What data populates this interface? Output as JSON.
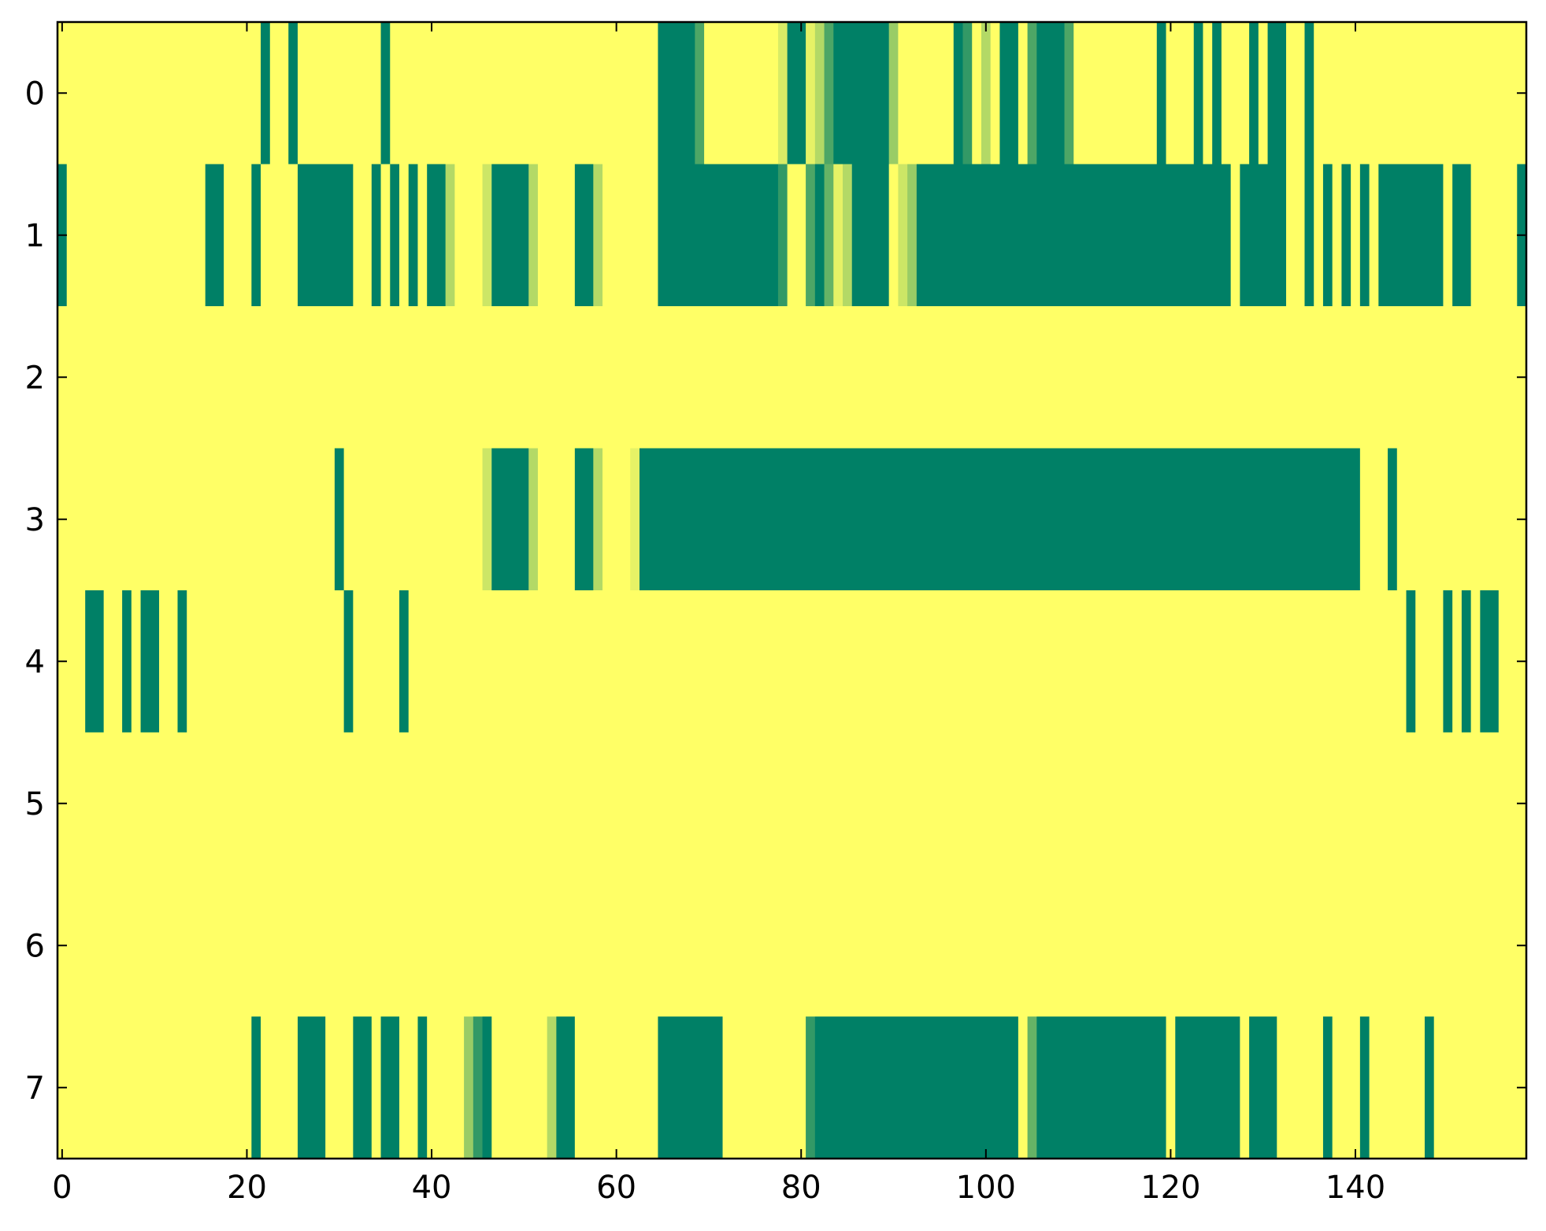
{
  "chart_data": {
    "type": "heatmap",
    "colormap": "summer",
    "xlim": [
      -0.5,
      158.5
    ],
    "ylim": [
      7.5,
      -0.5
    ],
    "xticks": [
      0,
      20,
      40,
      60,
      80,
      100,
      120,
      140
    ],
    "yticks": [
      0,
      1,
      2,
      3,
      4,
      5,
      6,
      7
    ],
    "values": [
      [
        1,
        1,
        1,
        1,
        1,
        1,
        1,
        1,
        1,
        1,
        1,
        1,
        1,
        1,
        1,
        1,
        1,
        1,
        1,
        1,
        1,
        1,
        0,
        1,
        1,
        0,
        1,
        1,
        1,
        1,
        1,
        1,
        1,
        1,
        1,
        0,
        1,
        1,
        1,
        1,
        1,
        1,
        1,
        1,
        1,
        1,
        1,
        1,
        1,
        1,
        1,
        1,
        1,
        1,
        1,
        1,
        1,
        1,
        1,
        1,
        1,
        1,
        1,
        1,
        1,
        0,
        0,
        0,
        0,
        0.3,
        1,
        1,
        1,
        1,
        1,
        1,
        1,
        1,
        0.85,
        0,
        0,
        0.9,
        0.7,
        0.3,
        0,
        0,
        0,
        0,
        0,
        0,
        0.6,
        1,
        1,
        1,
        1,
        1,
        1,
        0,
        0.2,
        1,
        0.7,
        1,
        0,
        0,
        1,
        0.3,
        0,
        0,
        0,
        0.3,
        1,
        1,
        1,
        1,
        1,
        1,
        1,
        1,
        1,
        0,
        1,
        1,
        1,
        0,
        1,
        0,
        1,
        1,
        1,
        0,
        1,
        0,
        0,
        1,
        1,
        0,
        1,
        1,
        1,
        1,
        1,
        1,
        1,
        1,
        1,
        1,
        1,
        1,
        1,
        1,
        1,
        1,
        1,
        1,
        1,
        1,
        1,
        1,
        1
      ],
      [
        0,
        1,
        1,
        1,
        1,
        1,
        1,
        1,
        1,
        1,
        1,
        1,
        1,
        1,
        1,
        1,
        0,
        0,
        1,
        1,
        1,
        0,
        1,
        1,
        1,
        1,
        0,
        0,
        0,
        0,
        0,
        0,
        1,
        1,
        0,
        1,
        0,
        1,
        0,
        1,
        0,
        0,
        0.7,
        1,
        1,
        1,
        0.8,
        0,
        0,
        0,
        0,
        0.7,
        1,
        1,
        1,
        1,
        0,
        0,
        0.7,
        1,
        1,
        1,
        1,
        1,
        1,
        0,
        0,
        0,
        0,
        0,
        0,
        0,
        0,
        0,
        0,
        0,
        0,
        0,
        0.2,
        1,
        1,
        0.3,
        0,
        0.4,
        0.9,
        0.7,
        0,
        0,
        0,
        0,
        1,
        0.8,
        0.6,
        0,
        0,
        0,
        0,
        0,
        0,
        0,
        0,
        0,
        0,
        0,
        0,
        0,
        0,
        0,
        0,
        0,
        0,
        0,
        0,
        0,
        0,
        0,
        0,
        0,
        0,
        0,
        0,
        0,
        0,
        0,
        0,
        0,
        0,
        1,
        0,
        0,
        0,
        0,
        0,
        1,
        1,
        0,
        1,
        0,
        1,
        0,
        1,
        0,
        1,
        0,
        0,
        0,
        0,
        0,
        0,
        0,
        1,
        0,
        0,
        1,
        1,
        1,
        1,
        1,
        0
      ],
      [
        1,
        1,
        1,
        1,
        1,
        1,
        1,
        1,
        1,
        1,
        1,
        1,
        1,
        1,
        1,
        1,
        1,
        1,
        1,
        1,
        1,
        1,
        1,
        1,
        1,
        1,
        1,
        1,
        1,
        1,
        1,
        1,
        1,
        1,
        1,
        1,
        1,
        1,
        1,
        1,
        1,
        1,
        1,
        1,
        1,
        1,
        1,
        1,
        1,
        1,
        1,
        1,
        1,
        1,
        1,
        1,
        1,
        1,
        1,
        1,
        1,
        1,
        1,
        1,
        1,
        1,
        1,
        1,
        1,
        1,
        1,
        1,
        1,
        1,
        1,
        1,
        1,
        1,
        1,
        1,
        1,
        1,
        1,
        1,
        1,
        1,
        1,
        1,
        1,
        1,
        1,
        1,
        1,
        1,
        1,
        1,
        1,
        1,
        1,
        1,
        1,
        1,
        1,
        1,
        1,
        1,
        1,
        1,
        1,
        1,
        1,
        1,
        1,
        1,
        1,
        1,
        1,
        1,
        1,
        1,
        1,
        1,
        1,
        1,
        1,
        1,
        1,
        1,
        1,
        1,
        1,
        1,
        1,
        1,
        1,
        1,
        1,
        1,
        1,
        1,
        1,
        1,
        1,
        1,
        1,
        1,
        1,
        1,
        1,
        1,
        1,
        1,
        1,
        1,
        1,
        1,
        1,
        1,
        1
      ],
      [
        1,
        1,
        1,
        1,
        1,
        1,
        1,
        1,
        1,
        1,
        1,
        1,
        1,
        1,
        1,
        1,
        1,
        1,
        1,
        1,
        1,
        1,
        1,
        1,
        1,
        1,
        1,
        1,
        1,
        1,
        0,
        1,
        1,
        1,
        1,
        1,
        1,
        1,
        1,
        1,
        1,
        1,
        1,
        1,
        1,
        1,
        0.8,
        0,
        0,
        0,
        0,
        0.7,
        1,
        1,
        1,
        1,
        0,
        0,
        0.7,
        1,
        1,
        1,
        0.9,
        0,
        0,
        0,
        0,
        0,
        0,
        0,
        0,
        0,
        0,
        0,
        0,
        0,
        0,
        0,
        0,
        0,
        0,
        0,
        0,
        0,
        0,
        0,
        0,
        0,
        0,
        0,
        0,
        0,
        0,
        0,
        0,
        0,
        0,
        0,
        0,
        0,
        0,
        0,
        0,
        0,
        0,
        0,
        0,
        0,
        0,
        0,
        0,
        0,
        0,
        0,
        0,
        0,
        0,
        0,
        0,
        0,
        0,
        0,
        0,
        0,
        0,
        0,
        0,
        0,
        0,
        0,
        0,
        0,
        0,
        0,
        0,
        0,
        0,
        0,
        0,
        0,
        0,
        1,
        1,
        1,
        0,
        1,
        1,
        1,
        1,
        1,
        1,
        1,
        1,
        1,
        1,
        1,
        1,
        1,
        1
      ],
      [
        1,
        1,
        1,
        0,
        0,
        1,
        1,
        0,
        1,
        0,
        0,
        1,
        1,
        0,
        1,
        1,
        1,
        1,
        1,
        1,
        1,
        1,
        1,
        1,
        1,
        1,
        1,
        1,
        1,
        1,
        1,
        0,
        1,
        1,
        1,
        1,
        1,
        0,
        1,
        1,
        1,
        1,
        1,
        1,
        1,
        1,
        1,
        1,
        1,
        1,
        1,
        1,
        1,
        1,
        1,
        1,
        1,
        1,
        1,
        1,
        1,
        1,
        1,
        1,
        1,
        1,
        1,
        1,
        1,
        1,
        1,
        1,
        1,
        1,
        1,
        1,
        1,
        1,
        1,
        1,
        1,
        1,
        1,
        1,
        1,
        1,
        1,
        1,
        1,
        1,
        1,
        1,
        1,
        1,
        1,
        1,
        1,
        1,
        1,
        1,
        1,
        1,
        1,
        1,
        1,
        1,
        1,
        1,
        1,
        1,
        1,
        1,
        1,
        1,
        1,
        1,
        1,
        1,
        1,
        1,
        1,
        1,
        1,
        1,
        1,
        1,
        1,
        1,
        1,
        1,
        1,
        1,
        1,
        1,
        1,
        1,
        1,
        1,
        1,
        1,
        1,
        1,
        1,
        1,
        1,
        1,
        0,
        1,
        1,
        1,
        0,
        1,
        0,
        1,
        0,
        0,
        1,
        1,
        1
      ],
      [
        1,
        1,
        1,
        1,
        1,
        1,
        1,
        1,
        1,
        1,
        1,
        1,
        1,
        1,
        1,
        1,
        1,
        1,
        1,
        1,
        1,
        1,
        1,
        1,
        1,
        1,
        1,
        1,
        1,
        1,
        1,
        1,
        1,
        1,
        1,
        1,
        1,
        1,
        1,
        1,
        1,
        1,
        1,
        1,
        1,
        1,
        1,
        1,
        1,
        1,
        1,
        1,
        1,
        1,
        1,
        1,
        1,
        1,
        1,
        1,
        1,
        1,
        1,
        1,
        1,
        1,
        1,
        1,
        1,
        1,
        1,
        1,
        1,
        1,
        1,
        1,
        1,
        1,
        1,
        1,
        1,
        1,
        1,
        1,
        1,
        1,
        1,
        1,
        1,
        1,
        1,
        1,
        1,
        1,
        1,
        1,
        1,
        1,
        1,
        1,
        1,
        1,
        1,
        1,
        1,
        1,
        1,
        1,
        1,
        1,
        1,
        1,
        1,
        1,
        1,
        1,
        1,
        1,
        1,
        1,
        1,
        1,
        1,
        1,
        1,
        1,
        1,
        1,
        1,
        1,
        1,
        1,
        1,
        1,
        1,
        1,
        1,
        1,
        1,
        1,
        1,
        1,
        1,
        1,
        1,
        1,
        1,
        1,
        1,
        1,
        1,
        1,
        1,
        1,
        1,
        1,
        1,
        1,
        1
      ],
      [
        1,
        1,
        1,
        1,
        1,
        1,
        1,
        1,
        1,
        1,
        1,
        1,
        1,
        1,
        1,
        1,
        1,
        1,
        1,
        1,
        1,
        1,
        1,
        1,
        1,
        1,
        1,
        1,
        1,
        1,
        1,
        1,
        1,
        1,
        1,
        1,
        1,
        1,
        1,
        1,
        1,
        1,
        1,
        1,
        1,
        1,
        1,
        1,
        1,
        1,
        1,
        1,
        1,
        1,
        1,
        1,
        1,
        1,
        1,
        1,
        1,
        1,
        1,
        1,
        1,
        1,
        1,
        1,
        1,
        1,
        1,
        1,
        1,
        1,
        1,
        1,
        1,
        1,
        1,
        1,
        1,
        1,
        1,
        1,
        1,
        1,
        1,
        1,
        1,
        1,
        1,
        1,
        1,
        1,
        1,
        1,
        1,
        1,
        1,
        1,
        1,
        1,
        1,
        1,
        1,
        1,
        1,
        1,
        1,
        1,
        1,
        1,
        1,
        1,
        1,
        1,
        1,
        1,
        1,
        1,
        1,
        1,
        1,
        1,
        1,
        1,
        1,
        1,
        1,
        1,
        1,
        1,
        1,
        1,
        1,
        1,
        1,
        1,
        1,
        1,
        1,
        1,
        1,
        1,
        1,
        1,
        1,
        1,
        1,
        1,
        1,
        1,
        1,
        1,
        1,
        1,
        1,
        1,
        1
      ],
      [
        1,
        1,
        1,
        1,
        1,
        1,
        1,
        1,
        1,
        1,
        1,
        1,
        1,
        1,
        1,
        1,
        1,
        1,
        1,
        1,
        1,
        0,
        1,
        1,
        1,
        1,
        0,
        0,
        0,
        1,
        1,
        1,
        0,
        0,
        1,
        0,
        0,
        1,
        1,
        0,
        1,
        1,
        1,
        1,
        0.6,
        0.2,
        0,
        1,
        1,
        1,
        1,
        1,
        1,
        0.7,
        0,
        0,
        1,
        1,
        1,
        1,
        1,
        1,
        1,
        1,
        1,
        0,
        0,
        0,
        0,
        0,
        0,
        0,
        1,
        1,
        1,
        1,
        1,
        1,
        1,
        1,
        1,
        0.2,
        0,
        0,
        0,
        0,
        0,
        0,
        0,
        0,
        0,
        0,
        0,
        0,
        0,
        0,
        0,
        0,
        0,
        0,
        0,
        0,
        0,
        0,
        1,
        0.4,
        0,
        0,
        0,
        0,
        0,
        0,
        0,
        0,
        0,
        0,
        0,
        0,
        0,
        0,
        1,
        0,
        0,
        0,
        0,
        0,
        0,
        0,
        1,
        0,
        0,
        0,
        1,
        1,
        1,
        1,
        1,
        0,
        1,
        1,
        1,
        0,
        1,
        1,
        1,
        1,
        1,
        1,
        0,
        1,
        1,
        1,
        1,
        1,
        1,
        1,
        1,
        1,
        1
      ]
    ]
  }
}
